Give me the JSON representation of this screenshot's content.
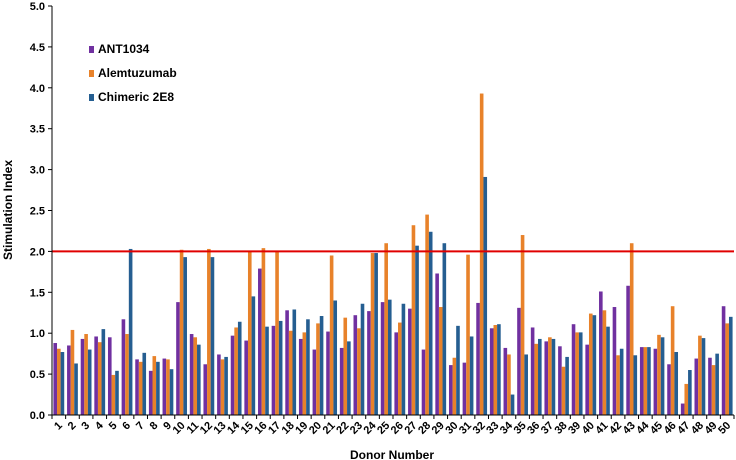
{
  "chart_data": {
    "type": "bar",
    "xlabel": "Donor Number",
    "ylabel": "Stimulation Index",
    "ylim": [
      0,
      5.0
    ],
    "yticks": [
      "0.0",
      "0.5",
      "1.0",
      "1.5",
      "2.0",
      "2.5",
      "3.0",
      "3.5",
      "4.0",
      "4.5",
      "5.0"
    ],
    "grid": false,
    "legend_position": "top-left",
    "categories": [
      "1",
      "2",
      "3",
      "4",
      "5",
      "6",
      "7",
      "8",
      "9",
      "10",
      "11",
      "12",
      "13",
      "14",
      "15",
      "16",
      "17",
      "18",
      "19",
      "20",
      "21",
      "22",
      "23",
      "24",
      "25",
      "26",
      "27",
      "28",
      "29",
      "30",
      "31",
      "32",
      "33",
      "34",
      "35",
      "36",
      "37",
      "38",
      "39",
      "40",
      "41",
      "42",
      "43",
      "44",
      "45",
      "46",
      "47",
      "48",
      "49",
      "50"
    ],
    "series": [
      {
        "name": "ANT1034",
        "color": "#7030a0",
        "values": [
          0.88,
          0.85,
          0.93,
          0.96,
          0.95,
          1.17,
          0.68,
          0.54,
          0.69,
          1.38,
          0.99,
          0.62,
          0.74,
          0.97,
          0.91,
          1.79,
          1.09,
          1.28,
          0.93,
          0.8,
          1.02,
          0.82,
          1.22,
          1.27,
          1.38,
          1.01,
          1.3,
          0.8,
          1.73,
          0.61,
          0.64,
          1.37,
          1.06,
          0.82,
          1.31,
          1.07,
          0.9,
          0.84,
          1.11,
          0.86,
          1.51,
          1.32,
          1.58,
          0.83,
          0.81,
          0.62,
          0.14,
          0.69,
          0.7,
          1.33
        ]
      },
      {
        "name": "Alemtuzumab",
        "color": "#e8822a",
        "values": [
          0.81,
          1.04,
          0.99,
          0.89,
          0.49,
          0.99,
          0.65,
          0.72,
          0.68,
          2.02,
          0.95,
          2.03,
          0.68,
          1.07,
          2.0,
          2.04,
          2.0,
          1.03,
          1.01,
          1.12,
          1.95,
          1.19,
          1.06,
          1.98,
          2.1,
          1.13,
          2.32,
          2.45,
          1.32,
          0.7,
          1.96,
          3.93,
          1.1,
          0.74,
          2.2,
          0.87,
          0.95,
          0.59,
          1.01,
          1.24,
          1.28,
          0.73,
          2.1,
          0.83,
          0.98,
          1.33,
          0.38,
          0.97,
          0.61,
          1.12
        ]
      },
      {
        "name": "Chimeric 2E8",
        "color": "#255e91",
        "values": [
          0.77,
          0.63,
          0.8,
          1.05,
          0.54,
          2.03,
          0.76,
          0.65,
          0.56,
          1.93,
          0.86,
          1.93,
          0.71,
          1.14,
          1.45,
          1.08,
          1.15,
          1.29,
          1.17,
          1.21,
          1.4,
          0.9,
          1.36,
          1.98,
          1.41,
          1.36,
          2.07,
          2.24,
          2.1,
          1.09,
          0.96,
          2.91,
          1.11,
          0.25,
          0.74,
          0.93,
          0.93,
          0.71,
          1.01,
          1.22,
          1.08,
          0.81,
          0.73,
          0.83,
          0.95,
          0.77,
          0.55,
          0.94,
          0.75,
          1.2
        ]
      }
    ],
    "reference_line": {
      "value": 2.0,
      "color": "#e00000"
    }
  }
}
